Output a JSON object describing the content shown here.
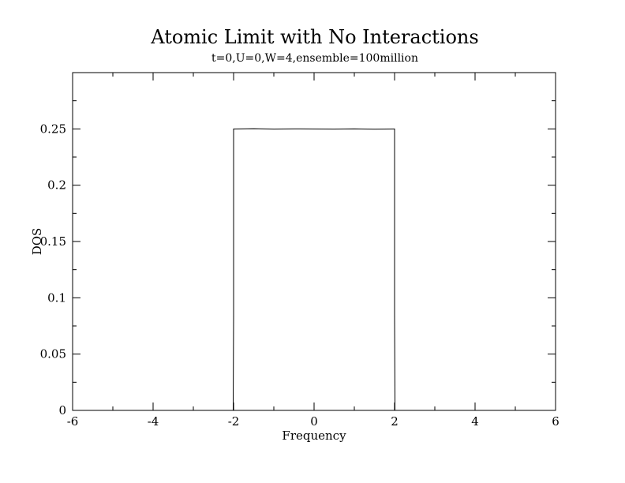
{
  "chart_data": {
    "type": "line",
    "title": "Atomic Limit with No Interactions",
    "subtitle": "t=0,U=0,W=4,ensemble=100million",
    "xlabel": "Frequency",
    "ylabel": "DOS",
    "xlim": [
      -6,
      6
    ],
    "ylim": [
      0,
      0.3
    ],
    "x_ticks": [
      -6,
      -4,
      -2,
      0,
      2,
      4,
      6
    ],
    "x_minor_ticks": [
      -5,
      -3,
      -1,
      1,
      3,
      5
    ],
    "y_ticks": [
      0,
      0.05,
      0.1,
      0.15,
      0.2,
      0.25
    ],
    "y_tick_labels": [
      "0",
      "0.05",
      "0.1",
      "0.15",
      "0.2",
      "0.25"
    ],
    "y_minor_ticks": [
      0.025,
      0.075,
      0.125,
      0.175,
      0.225,
      0.275
    ],
    "grid": false,
    "series": [
      {
        "x": [
          -2.01,
          -2.0,
          -2.0,
          -1.98,
          -1.5,
          -1.0,
          -0.5,
          0.0,
          0.5,
          1.0,
          1.5,
          1.98,
          2.0,
          2.0,
          2.01
        ],
        "y": [
          0,
          0.084,
          0.25,
          0.25,
          0.2502,
          0.2499,
          0.2501,
          0.25,
          0.2499,
          0.2501,
          0.2498,
          0.25,
          0.25,
          0.084,
          0
        ],
        "color": "#000000"
      }
    ]
  }
}
